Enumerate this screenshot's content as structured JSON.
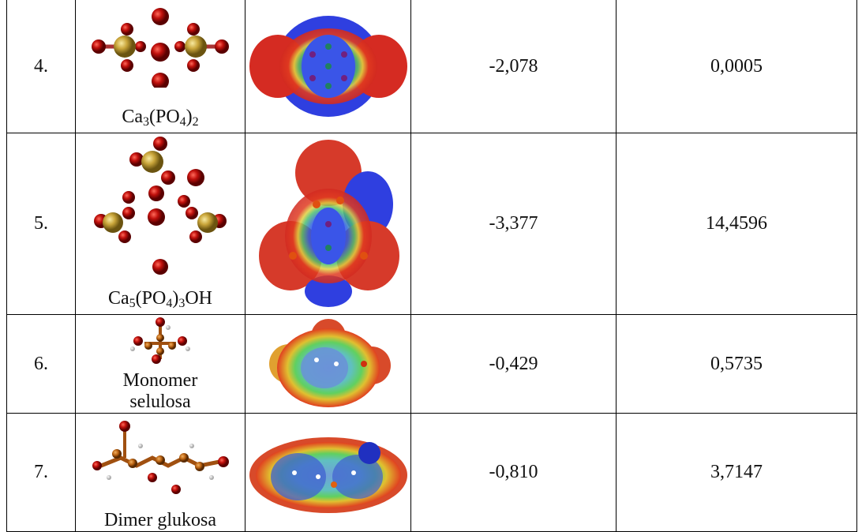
{
  "table": {
    "rows": [
      {
        "number": "4.",
        "label": [
          {
            "text": "Ca"
          },
          {
            "sub": "3"
          },
          {
            "text": "(PO"
          },
          {
            "sub": "4"
          },
          {
            "text": ")"
          },
          {
            "sub": "2"
          }
        ],
        "value_1": "-2,078",
        "value_2": "0,0005"
      },
      {
        "number": "5.",
        "label": [
          {
            "text": "Ca"
          },
          {
            "sub": "5"
          },
          {
            "text": "(PO"
          },
          {
            "sub": "4"
          },
          {
            "text": ")"
          },
          {
            "sub": "3"
          },
          {
            "text": "OH"
          }
        ],
        "value_1": "-3,377",
        "value_2": "14,4596"
      },
      {
        "number": "6.",
        "label": [
          {
            "text": "Monomer selulosa"
          }
        ],
        "value_1": "-0,429",
        "value_2": "0,5735"
      },
      {
        "number": "7.",
        "label": [
          {
            "text": "Dimer glukosa"
          }
        ],
        "value_1": "-0,810",
        "value_2": "3,7147"
      }
    ]
  }
}
